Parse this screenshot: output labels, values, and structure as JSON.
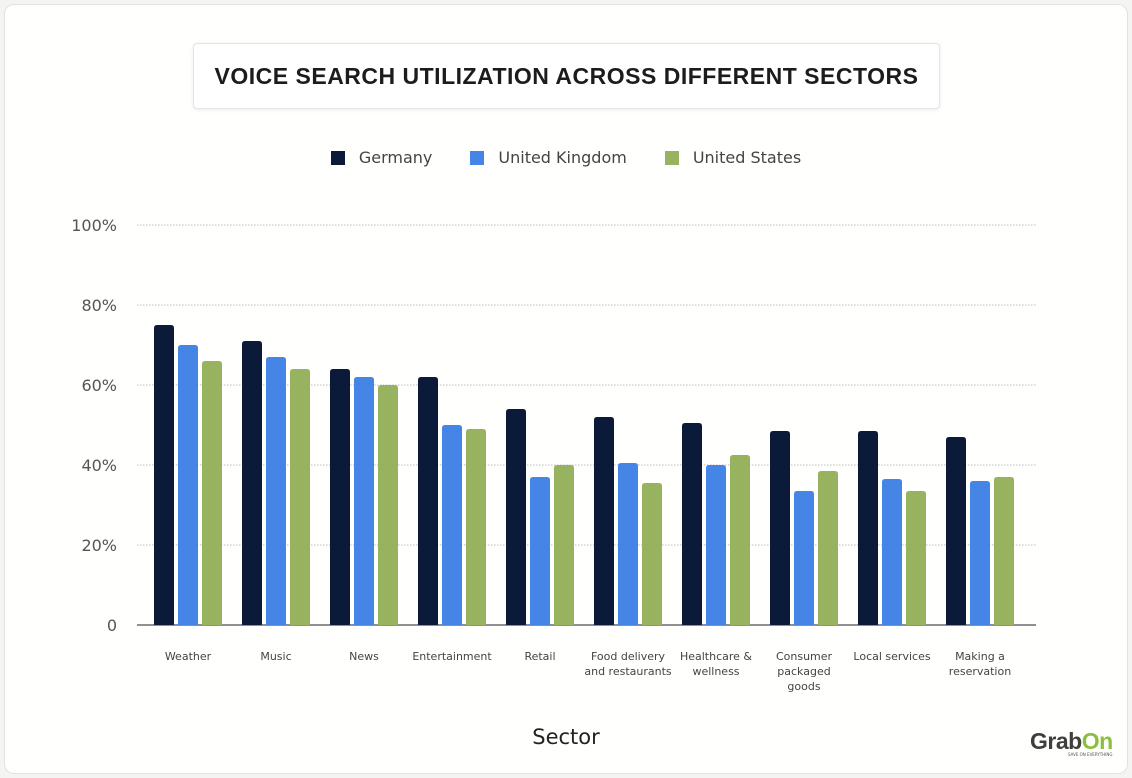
{
  "chart_data": {
    "type": "bar",
    "title": "VOICE SEARCH UTILIZATION ACROSS DIFFERENT SECTORS",
    "xlabel": "Sector",
    "ylabel": "",
    "ylim": [
      0,
      100
    ],
    "yticks": [
      "0",
      "20%",
      "40%",
      "60%",
      "80%",
      "100%"
    ],
    "grid": true,
    "legend_position": "top",
    "categories": [
      "Weather",
      "Music",
      "News",
      "Entertainment",
      "Retail",
      "Food delivery\nand restaurants",
      "Healthcare &\nwellness",
      "Consumer\npackaged\ngoods",
      "Local services",
      "Making a\nreservation"
    ],
    "series": [
      {
        "name": "Germany",
        "color": "#0b1a38",
        "values": [
          75,
          71,
          64,
          62,
          54,
          52,
          50.5,
          48.5,
          48.5,
          47
        ]
      },
      {
        "name": "United Kingdom",
        "color": "#4585e6",
        "values": [
          70,
          67,
          62,
          50,
          37,
          40.5,
          40,
          33.5,
          36.5,
          36
        ]
      },
      {
        "name": "United States",
        "color": "#98b35f",
        "values": [
          66,
          64,
          60,
          49,
          40,
          35.5,
          42.5,
          38.5,
          33.5,
          37
        ]
      }
    ]
  },
  "branding": {
    "logo": "GrabOn",
    "tagline": "SAVE ON EVERYTHING"
  }
}
